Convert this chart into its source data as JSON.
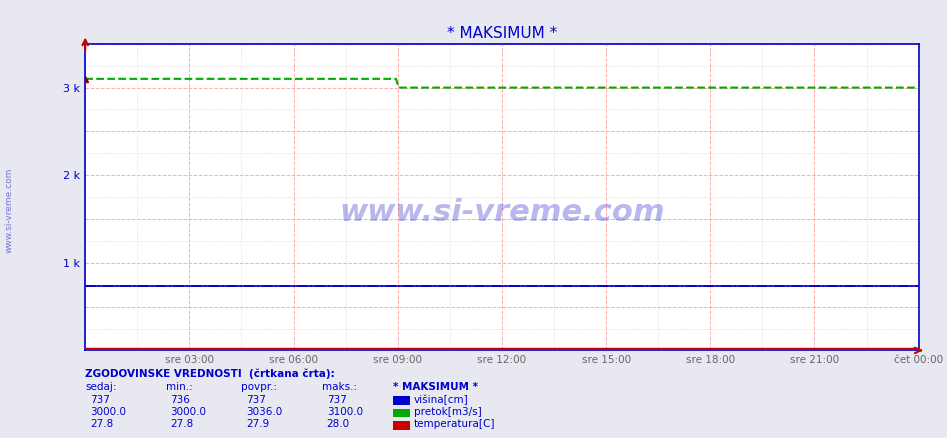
{
  "title": "* MAKSIMUM *",
  "title_color": "#0000cc",
  "bg_color": "#e8e8f0",
  "plot_bg_color": "#ffffff",
  "fig_size": [
    9.47,
    4.38
  ],
  "dpi": 100,
  "ylim": [
    0,
    3500
  ],
  "yticks": [
    0,
    1000,
    2000,
    3000
  ],
  "ytick_labels": [
    "",
    "1 k",
    "2 k",
    "3 k"
  ],
  "xtick_labels": [
    "sre 03:00",
    "sre 06:00",
    "sre 09:00",
    "sre 12:00",
    "sre 15:00",
    "sre 18:00",
    "sre 21:00",
    "čet 00:00"
  ],
  "n_points": 288,
  "visina_sedaj": 737,
  "visina_min": 736,
  "visina_povpr": 737,
  "visina_maks": 737,
  "pretok_sedaj": 3000.0,
  "pretok_min": 3000.0,
  "pretok_povpr": 3036.0,
  "pretok_maks": 3100.0,
  "temp_sedaj": 27.8,
  "temp_min": 27.8,
  "temp_povpr": 27.9,
  "temp_maks": 28.0,
  "visina_line_color": "#0000cc",
  "pretok_line_color": "#00aa00",
  "temp_line_color": "#cc0000",
  "visina_dash_color": "#000088",
  "temp_dash_color": "#880000",
  "grid_major_color": "#ffaaaa",
  "grid_dot_color": "#cccccc",
  "axis_color": "#0000cc",
  "watermark": "www.si-vreme.com",
  "sidebar_color": "#4444cc",
  "legend_header": "ZGODOVINSKE VREDNOSTI  (črtkana črta):",
  "legend_color": "#0000cc",
  "visina_max_historical": 737,
  "pretok_max_historical": 3100,
  "temp_max_historical": 28.0,
  "n_xticks": 8
}
